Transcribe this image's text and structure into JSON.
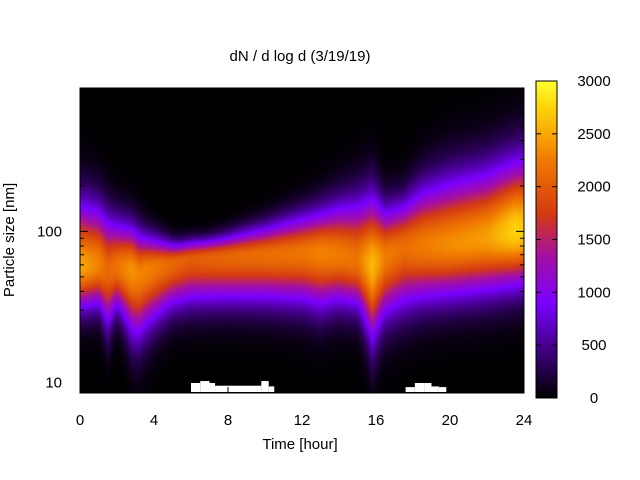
{
  "chart_data": {
    "type": "heatmap",
    "title": "dN / d log d (3/19/19)",
    "xlabel": "Time [hour]",
    "ylabel": "Particle size [nm]",
    "x_range": [
      0,
      24
    ],
    "x_ticks": [
      "0",
      "4",
      "8",
      "12",
      "16",
      "20",
      "24"
    ],
    "x_tick_values": [
      0,
      4,
      8,
      12,
      16,
      20,
      24
    ],
    "y_scale": "log",
    "y_range": [
      8.5,
      890
    ],
    "y_ticks": [
      "10",
      "100"
    ],
    "y_tick_values": [
      10,
      100
    ],
    "colorbar": {
      "range": [
        0,
        3000
      ],
      "ticks": [
        "0",
        "500",
        "1000",
        "1500",
        "2000",
        "2500",
        "3000"
      ],
      "tick_values": [
        0,
        500,
        1000,
        1500,
        2000,
        2500,
        3000
      ],
      "colormap": [
        "#000000",
        "#3b0077",
        "#7a00ff",
        "#a510a0",
        "#d43a12",
        "#f07a00",
        "#ffd60a",
        "#ffff30"
      ]
    },
    "heatmap_profile": {
      "time_hours": [
        0,
        1,
        1.5,
        2,
        2.8,
        3.2,
        3.6,
        5,
        6,
        8,
        10,
        12,
        13,
        14,
        15,
        15.8,
        16.5,
        17.5,
        18.5,
        20,
        22,
        23.5,
        24
      ],
      "peak_diameter_nm": [
        58,
        60,
        55,
        58,
        56,
        52,
        56,
        62,
        66,
        68,
        70,
        72,
        72,
        70,
        65,
        60,
        68,
        78,
        80,
        82,
        90,
        100,
        100
      ],
      "peak_concentration": [
        2500,
        2300,
        2100,
        2200,
        2400,
        2300,
        2300,
        2100,
        2000,
        2100,
        2150,
        2200,
        2300,
        2250,
        2200,
        2600,
        2250,
        2150,
        2250,
        2350,
        2450,
        2750,
        2700
      ],
      "upper_edge_nm": [
        160,
        150,
        130,
        120,
        110,
        100,
        95,
        85,
        85,
        95,
        110,
        130,
        140,
        155,
        165,
        175,
        145,
        160,
        200,
        230,
        260,
        300,
        310
      ],
      "lower_edge_nm": [
        30,
        31,
        22,
        30,
        20,
        19,
        22,
        30,
        32,
        33,
        33,
        32,
        30,
        32,
        30,
        18,
        26,
        30,
        33,
        35,
        38,
        42,
        43
      ]
    },
    "missing_data_regions": [
      {
        "t0": 6.0,
        "t1": 6.5,
        "d_max": 9.9
      },
      {
        "t0": 6.5,
        "t1": 7.0,
        "d_max": 10.2
      },
      {
        "t0": 7.0,
        "t1": 7.3,
        "d_max": 9.9
      },
      {
        "t0": 7.3,
        "t1": 9.8,
        "d_max": 9.5
      },
      {
        "t0": 9.8,
        "t1": 10.2,
        "d_max": 10.2
      },
      {
        "t0": 10.2,
        "t1": 10.5,
        "d_max": 9.4
      },
      {
        "t0": 17.6,
        "t1": 18.1,
        "d_max": 9.3
      },
      {
        "t0": 18.1,
        "t1": 18.6,
        "d_max": 9.9
      },
      {
        "t0": 18.6,
        "t1": 19.0,
        "d_max": 9.9
      },
      {
        "t0": 19.0,
        "t1": 19.4,
        "d_max": 9.4
      },
      {
        "t0": 19.4,
        "t1": 19.8,
        "d_max": 9.3
      }
    ]
  }
}
